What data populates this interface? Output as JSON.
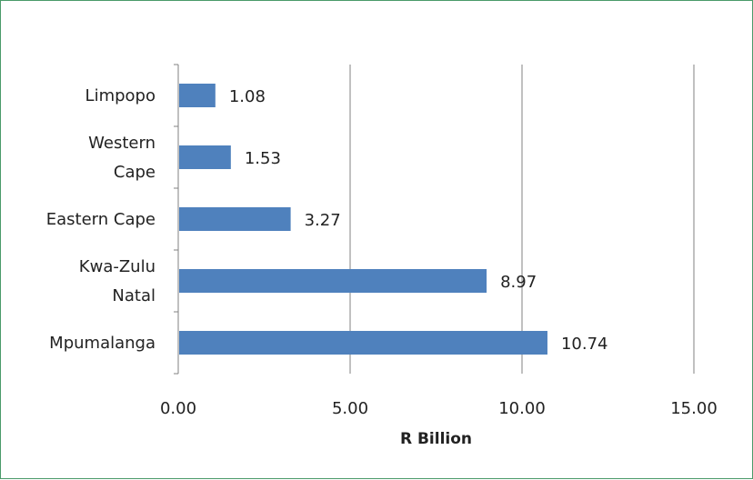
{
  "chart_data": {
    "type": "bar",
    "orientation": "horizontal",
    "categories": [
      "Limpopo",
      "Western Cape",
      "Eastern Cape",
      "Kwa-Zulu Natal",
      "Mpumalanga"
    ],
    "category_lines": [
      [
        "Limpopo"
      ],
      [
        "Western",
        "Cape"
      ],
      [
        "Eastern Cape"
      ],
      [
        "Kwa-Zulu",
        "Natal"
      ],
      [
        "Mpumalanga"
      ]
    ],
    "values": [
      1.08,
      1.53,
      3.27,
      8.97,
      10.74
    ],
    "value_labels": [
      "1.08",
      "1.53",
      "3.27",
      "8.97",
      "10.74"
    ],
    "xlabel": "R Billion",
    "ylabel": "",
    "title": "",
    "xlim": [
      0,
      15
    ],
    "xticks": [
      0,
      5,
      10,
      15
    ],
    "xtick_labels": [
      "0.00",
      "5.00",
      "10.00",
      "15.00"
    ],
    "grid": "vertical",
    "legend": "none",
    "bar_color": "#4f81bd",
    "grid_color": "#808080"
  }
}
